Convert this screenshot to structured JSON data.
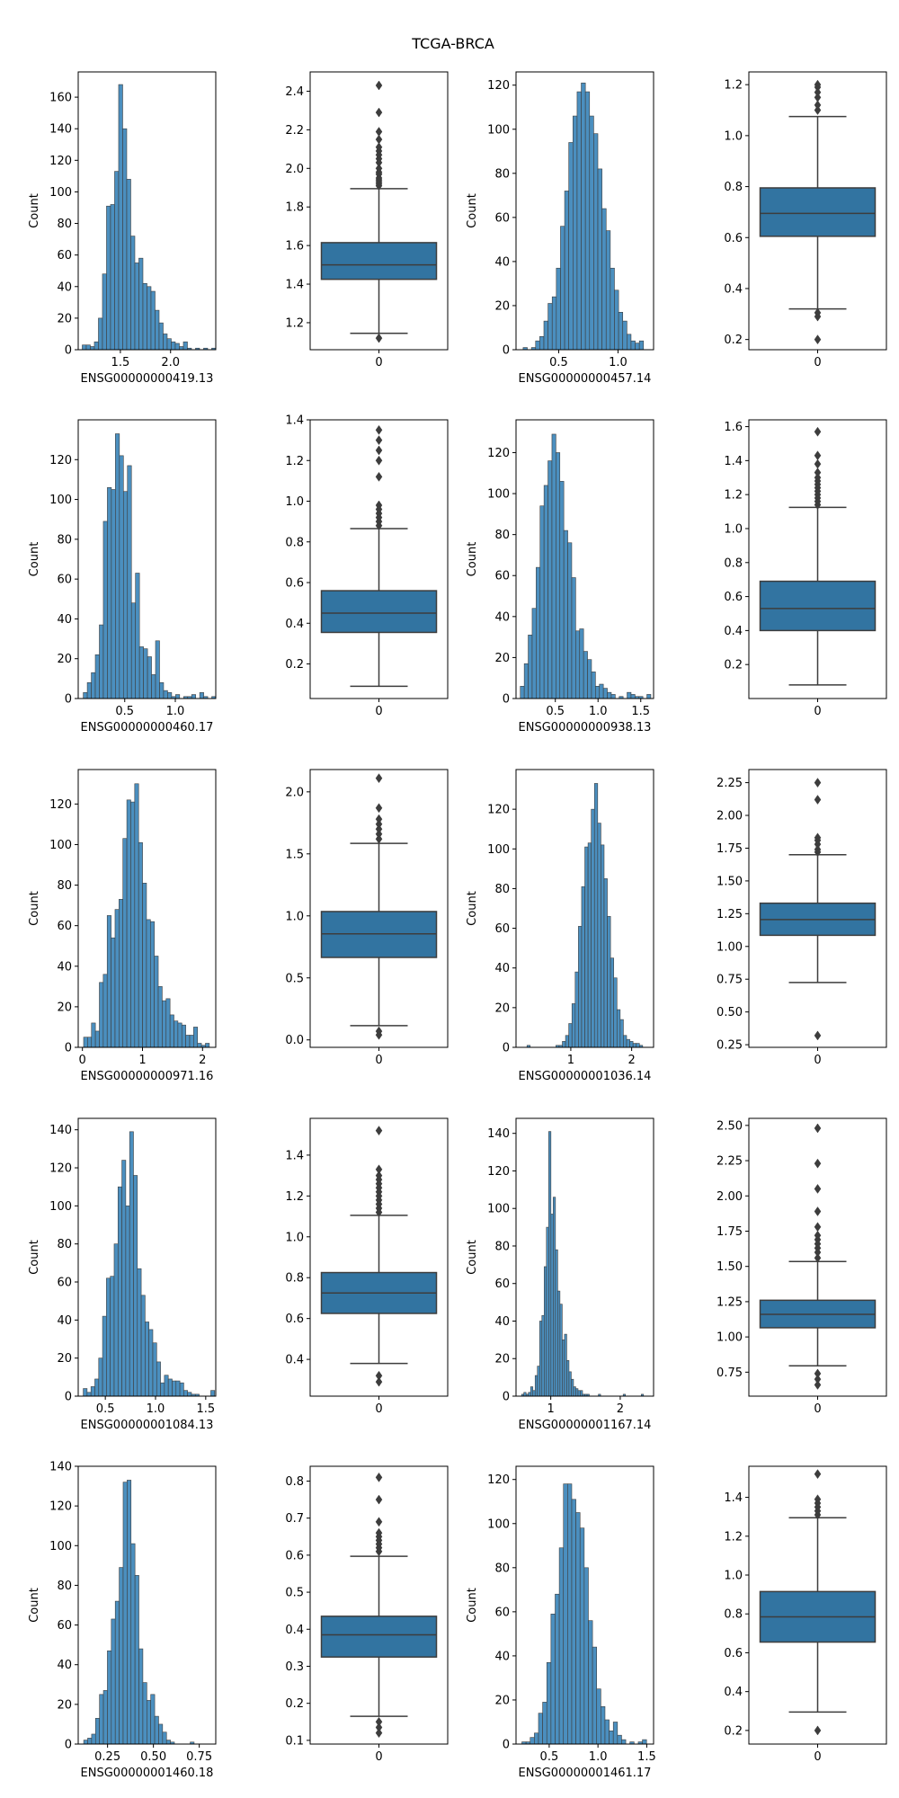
{
  "figure": {
    "title": "TCGA-BRCA"
  },
  "colors": {
    "bar": "#4b8fbf",
    "box": "#3274a1",
    "line": "#3d3d3d",
    "frame": "#000000"
  },
  "chart_data": [
    {
      "type": "bar",
      "kind": "histogram",
      "xlabel": "ENSG00000000419.13",
      "ylabel": "Count",
      "xlim": [
        1.08,
        2.45
      ],
      "ylim": [
        0,
        176
      ],
      "xticks": [
        1.5,
        2.0
      ],
      "xtick_labels": [
        "1.5",
        "2.0"
      ],
      "yticks": [
        0,
        20,
        40,
        60,
        80,
        100,
        120,
        140,
        160
      ],
      "ytick_labels": [
        "0",
        "20",
        "40",
        "60",
        "80",
        "100",
        "120",
        "140",
        "160"
      ],
      "bin_start": 1.12,
      "bin_width": 0.0403,
      "counts": [
        3,
        3,
        2,
        5,
        20,
        48,
        91,
        92,
        113,
        168,
        140,
        108,
        72,
        55,
        58,
        42,
        40,
        37,
        25,
        17,
        10,
        7,
        5,
        4,
        2,
        5,
        1,
        0,
        1,
        0,
        1,
        0,
        1
      ]
    },
    {
      "type": "box",
      "xlabel": "",
      "xtick_labels": [
        "0"
      ],
      "ylim": [
        1.06,
        2.5
      ],
      "yticks": [
        1.2,
        1.4,
        1.6,
        1.8,
        2.0,
        2.2,
        2.4
      ],
      "ytick_labels": [
        "1.2",
        "1.4",
        "1.6",
        "1.8",
        "2.0",
        "2.2",
        "2.4"
      ],
      "q1": 1.425,
      "median": 1.5,
      "q3": 1.615,
      "whisker_low": 1.145,
      "whisker_high": 1.895,
      "outliers": [
        1.12,
        1.91,
        1.92,
        1.93,
        1.94,
        1.95,
        1.97,
        1.98,
        2.0,
        2.03,
        2.05,
        2.07,
        2.09,
        2.11,
        2.15,
        2.19,
        2.29,
        2.43
      ]
    },
    {
      "type": "bar",
      "kind": "histogram",
      "xlabel": "ENSG00000000457.14",
      "ylabel": "Count",
      "xlim": [
        0.14,
        1.3
      ],
      "ylim": [
        0,
        126
      ],
      "xticks": [
        0.5,
        1.0
      ],
      "xtick_labels": [
        "0.5",
        "1.0"
      ],
      "yticks": [
        0,
        20,
        40,
        60,
        80,
        100,
        120
      ],
      "ytick_labels": [
        "0",
        "20",
        "40",
        "60",
        "80",
        "100",
        "120"
      ],
      "bin_start": 0.2,
      "bin_width": 0.035,
      "counts": [
        1,
        0,
        1,
        4,
        6,
        13,
        21,
        24,
        37,
        56,
        72,
        94,
        106,
        117,
        121,
        117,
        106,
        98,
        82,
        64,
        54,
        37,
        27,
        17,
        13,
        7,
        4,
        3,
        4
      ]
    },
    {
      "type": "box",
      "xlabel": "",
      "xtick_labels": [
        "0"
      ],
      "ylim": [
        0.16,
        1.25
      ],
      "yticks": [
        0.2,
        0.4,
        0.6,
        0.8,
        1.0,
        1.2
      ],
      "ytick_labels": [
        "0.2",
        "0.4",
        "0.6",
        "0.8",
        "1.0",
        "1.2"
      ],
      "q1": 0.605,
      "median": 0.695,
      "q3": 0.795,
      "whisker_low": 0.32,
      "whisker_high": 1.075,
      "outliers": [
        0.2,
        0.29,
        0.305,
        1.1,
        1.12,
        1.15,
        1.17,
        1.19,
        1.2
      ]
    },
    {
      "type": "bar",
      "kind": "histogram",
      "xlabel": "ENSG00000000460.17",
      "ylabel": "Count",
      "xlim": [
        0.04,
        1.4
      ],
      "ylim": [
        0,
        140
      ],
      "xticks": [
        0.5,
        1.0
      ],
      "xtick_labels": [
        "0.5",
        "1.0"
      ],
      "yticks": [
        0,
        20,
        40,
        60,
        80,
        100,
        120
      ],
      "ytick_labels": [
        "0",
        "20",
        "40",
        "60",
        "80",
        "100",
        "120"
      ],
      "bin_start": 0.09,
      "bin_width": 0.0397,
      "counts": [
        3,
        8,
        13,
        22,
        37,
        89,
        106,
        105,
        133,
        122,
        104,
        117,
        48,
        63,
        26,
        25,
        21,
        12,
        29,
        8,
        4,
        3,
        1,
        2,
        0,
        1,
        1,
        2,
        0,
        3,
        1,
        0,
        1
      ]
    },
    {
      "type": "box",
      "xlabel": "",
      "xtick_labels": [
        "0"
      ],
      "ylim": [
        0.03,
        1.4
      ],
      "yticks": [
        0.2,
        0.4,
        0.6,
        0.8,
        1.0,
        1.2,
        1.4
      ],
      "ytick_labels": [
        "0.2",
        "0.4",
        "0.6",
        "0.8",
        "1.0",
        "1.2",
        "1.4"
      ],
      "q1": 0.355,
      "median": 0.45,
      "q3": 0.56,
      "whisker_low": 0.09,
      "whisker_high": 0.865,
      "outliers": [
        0.88,
        0.9,
        0.92,
        0.94,
        0.96,
        0.98,
        1.12,
        1.2,
        1.25,
        1.3,
        1.35
      ]
    },
    {
      "type": "bar",
      "kind": "histogram",
      "xlabel": "ENSG00000000938.13",
      "ylabel": "Count",
      "xlim": [
        0.04,
        1.65
      ],
      "ylim": [
        0,
        136
      ],
      "xticks": [
        0.5,
        1.0,
        1.5
      ],
      "xtick_labels": [
        "0.5",
        "1.0",
        "1.5"
      ],
      "yticks": [
        0,
        20,
        40,
        60,
        80,
        100,
        120
      ],
      "ytick_labels": [
        "0",
        "20",
        "40",
        "60",
        "80",
        "100",
        "120"
      ],
      "bin_start": 0.09,
      "bin_width": 0.0463,
      "counts": [
        6,
        17,
        31,
        44,
        64,
        94,
        104,
        116,
        129,
        120,
        106,
        82,
        76,
        59,
        33,
        34,
        23,
        19,
        13,
        6,
        7,
        5,
        3,
        2,
        0,
        1,
        0,
        3,
        2,
        1,
        1,
        0,
        2
      ]
    },
    {
      "type": "box",
      "xlabel": "",
      "xtick_labels": [
        "0"
      ],
      "ylim": [
        0.0,
        1.64
      ],
      "yticks": [
        0.2,
        0.4,
        0.6,
        0.8,
        1.0,
        1.2,
        1.4,
        1.6
      ],
      "ytick_labels": [
        "0.2",
        "0.4",
        "0.6",
        "0.8",
        "1.0",
        "1.2",
        "1.4",
        "1.6"
      ],
      "q1": 0.4,
      "median": 0.53,
      "q3": 0.69,
      "whisker_low": 0.08,
      "whisker_high": 1.125,
      "outliers": [
        1.14,
        1.16,
        1.18,
        1.2,
        1.22,
        1.24,
        1.26,
        1.28,
        1.3,
        1.33,
        1.38,
        1.43,
        1.57
      ]
    },
    {
      "type": "bar",
      "kind": "histogram",
      "xlabel": "ENSG00000000971.16",
      "ylabel": "Count",
      "xlim": [
        -0.07,
        2.22
      ],
      "ylim": [
        0,
        137
      ],
      "xticks": [
        0,
        1,
        2
      ],
      "xtick_labels": [
        "0",
        "1",
        "2"
      ],
      "yticks": [
        0,
        20,
        40,
        60,
        80,
        100,
        120
      ],
      "ytick_labels": [
        "0",
        "20",
        "40",
        "60",
        "80",
        "100",
        "120"
      ],
      "bin_start": 0.02,
      "bin_width": 0.0654,
      "counts": [
        5,
        5,
        12,
        8,
        32,
        36,
        65,
        54,
        68,
        73,
        103,
        122,
        121,
        130,
        101,
        81,
        63,
        62,
        45,
        30,
        23,
        24,
        16,
        13,
        12,
        11,
        6,
        6,
        10,
        2,
        1,
        2
      ]
    },
    {
      "type": "box",
      "xlabel": "",
      "xtick_labels": [
        "0"
      ],
      "ylim": [
        -0.06,
        2.18
      ],
      "yticks": [
        0.0,
        0.5,
        1.0,
        1.5,
        2.0
      ],
      "ytick_labels": [
        "0.0",
        "0.5",
        "1.0",
        "1.5",
        "2.0"
      ],
      "q1": 0.665,
      "median": 0.855,
      "q3": 1.035,
      "whisker_low": 0.115,
      "whisker_high": 1.585,
      "outliers": [
        0.04,
        0.07,
        1.62,
        1.66,
        1.7,
        1.74,
        1.78,
        1.87,
        2.11
      ]
    },
    {
      "type": "bar",
      "kind": "histogram",
      "xlabel": "ENSG00000001036.14",
      "ylabel": "Count",
      "xlim": [
        0.1,
        2.36
      ],
      "ylim": [
        0,
        140
      ],
      "xticks": [
        1,
        2
      ],
      "xtick_labels": [
        "1",
        "2"
      ],
      "yticks": [
        0,
        20,
        40,
        60,
        80,
        100,
        120
      ],
      "ytick_labels": [
        "0",
        "20",
        "40",
        "60",
        "80",
        "100",
        "120"
      ],
      "bin_start": 0.28,
      "bin_width": 0.0528,
      "counts": [
        1,
        0,
        0,
        0,
        0,
        0,
        0,
        0,
        0,
        1,
        1,
        3,
        6,
        12,
        22,
        38,
        61,
        81,
        101,
        103,
        120,
        133,
        113,
        102,
        85,
        66,
        45,
        35,
        19,
        14,
        6,
        4,
        3,
        2,
        2,
        1,
        0,
        0,
        0,
        0
      ]
    },
    {
      "type": "box",
      "xlabel": "",
      "xtick_labels": [
        "0"
      ],
      "ylim": [
        0.23,
        2.35
      ],
      "yticks": [
        0.25,
        0.5,
        0.75,
        1.0,
        1.25,
        1.5,
        1.75,
        2.0,
        2.25
      ],
      "ytick_labels": [
        "0.25",
        "0.50",
        "0.75",
        "1.00",
        "1.25",
        "1.50",
        "1.75",
        "2.00",
        "2.25"
      ],
      "q1": 1.085,
      "median": 1.205,
      "q3": 1.33,
      "whisker_low": 0.725,
      "whisker_high": 1.7,
      "outliers": [
        0.32,
        1.72,
        1.74,
        1.78,
        1.81,
        1.83,
        2.12,
        2.25
      ]
    },
    {
      "type": "bar",
      "kind": "histogram",
      "xlabel": "ENSG00000001084.13",
      "ylabel": "Count",
      "xlim": [
        0.23,
        1.6
      ],
      "ylim": [
        0,
        146
      ],
      "xticks": [
        0.5,
        1.0,
        1.5
      ],
      "xtick_labels": [
        "0.5",
        "1.0",
        "1.5"
      ],
      "yticks": [
        0,
        20,
        40,
        60,
        80,
        100,
        120,
        140
      ],
      "ytick_labels": [
        "0",
        "20",
        "40",
        "60",
        "80",
        "100",
        "120",
        "140"
      ],
      "bin_start": 0.28,
      "bin_width": 0.0385,
      "counts": [
        4,
        2,
        5,
        9,
        20,
        42,
        62,
        63,
        80,
        110,
        124,
        100,
        139,
        116,
        67,
        53,
        39,
        35,
        28,
        18,
        7,
        11,
        9,
        8,
        8,
        7,
        3,
        2,
        1,
        1,
        0,
        0,
        0,
        3
      ]
    },
    {
      "type": "box",
      "xlabel": "",
      "xtick_labels": [
        "0"
      ],
      "ylim": [
        0.22,
        1.58
      ],
      "yticks": [
        0.4,
        0.6,
        0.8,
        1.0,
        1.2,
        1.4
      ],
      "ytick_labels": [
        "0.4",
        "0.6",
        "0.8",
        "1.0",
        "1.2",
        "1.4"
      ],
      "q1": 0.625,
      "median": 0.725,
      "q3": 0.825,
      "whisker_low": 0.38,
      "whisker_high": 1.105,
      "outliers": [
        0.29,
        0.32,
        1.12,
        1.14,
        1.16,
        1.18,
        1.2,
        1.22,
        1.24,
        1.26,
        1.28,
        1.3,
        1.33,
        1.52
      ]
    },
    {
      "type": "bar",
      "kind": "histogram",
      "xlabel": "ENSG00000001167.14",
      "ylabel": "Count",
      "xlim": [
        0.5,
        2.48
      ],
      "ylim": [
        0,
        148
      ],
      "xticks": [
        1,
        2
      ],
      "xtick_labels": [
        "1",
        "2"
      ],
      "yticks": [
        0,
        20,
        40,
        60,
        80,
        100,
        120,
        140
      ],
      "ytick_labels": [
        "0",
        "20",
        "40",
        "60",
        "80",
        "100",
        "120",
        "140"
      ],
      "bin_start": 0.58,
      "bin_width": 0.0325,
      "counts": [
        1,
        2,
        1,
        2,
        5,
        3,
        11,
        16,
        40,
        43,
        69,
        90,
        141,
        97,
        106,
        78,
        56,
        49,
        30,
        33,
        19,
        13,
        9,
        5,
        4,
        3,
        3,
        1,
        1,
        1,
        0,
        0,
        0,
        0,
        1,
        0,
        0,
        0,
        0,
        0,
        0,
        0,
        0,
        0,
        0,
        1,
        0,
        0,
        0,
        0,
        0,
        0,
        0,
        1
      ]
    },
    {
      "type": "box",
      "xlabel": "",
      "xtick_labels": [
        "0"
      ],
      "ylim": [
        0.58,
        2.55
      ],
      "yticks": [
        0.75,
        1.0,
        1.25,
        1.5,
        1.75,
        2.0,
        2.25,
        2.5
      ],
      "ytick_labels": [
        "0.75",
        "1.00",
        "1.25",
        "1.50",
        "1.75",
        "2.00",
        "2.25",
        "2.50"
      ],
      "q1": 1.065,
      "median": 1.16,
      "q3": 1.26,
      "whisker_low": 0.795,
      "whisker_high": 1.535,
      "outliers": [
        0.66,
        0.7,
        0.74,
        1.56,
        1.6,
        1.63,
        1.66,
        1.69,
        1.72,
        1.78,
        1.89,
        2.05,
        2.23,
        2.48
      ]
    },
    {
      "type": "bar",
      "kind": "histogram",
      "xlabel": "ENSG00000001460.18",
      "ylabel": "Count",
      "xlim": [
        0.09,
        0.84
      ],
      "ylim": [
        0,
        140
      ],
      "xticks": [
        0.25,
        0.5,
        0.75
      ],
      "xtick_labels": [
        "0.25",
        "0.50",
        "0.75"
      ],
      "yticks": [
        0,
        20,
        40,
        60,
        80,
        100,
        120,
        140
      ],
      "ytick_labels": [
        "0",
        "20",
        "40",
        "60",
        "80",
        "100",
        "120",
        "140"
      ],
      "bin_start": 0.12,
      "bin_width": 0.0215,
      "counts": [
        2,
        3,
        5,
        13,
        25,
        27,
        47,
        63,
        72,
        89,
        132,
        133,
        101,
        85,
        48,
        31,
        22,
        25,
        14,
        10,
        6,
        2,
        1,
        0,
        0,
        0,
        0,
        1
      ]
    },
    {
      "type": "box",
      "xlabel": "",
      "xtick_labels": [
        "0"
      ],
      "ylim": [
        0.09,
        0.84
      ],
      "yticks": [
        0.1,
        0.2,
        0.3,
        0.4,
        0.5,
        0.6,
        0.7,
        0.8
      ],
      "ytick_labels": [
        "0.1",
        "0.2",
        "0.3",
        "0.4",
        "0.5",
        "0.6",
        "0.7",
        "0.8"
      ],
      "q1": 0.325,
      "median": 0.385,
      "q3": 0.435,
      "whisker_low": 0.165,
      "whisker_high": 0.597,
      "outliers": [
        0.12,
        0.135,
        0.15,
        0.61,
        0.62,
        0.63,
        0.64,
        0.65,
        0.66,
        0.69,
        0.75,
        0.81
      ]
    },
    {
      "type": "bar",
      "kind": "histogram",
      "xlabel": "ENSG00000001461.17",
      "ylabel": "Count",
      "xlim": [
        0.16,
        1.57
      ],
      "ylim": [
        0,
        126
      ],
      "xticks": [
        0.5,
        1.0,
        1.5
      ],
      "xtick_labels": [
        "0.5",
        "1.0",
        "1.5"
      ],
      "yticks": [
        0,
        20,
        40,
        60,
        80,
        100,
        120
      ],
      "ytick_labels": [
        "0",
        "20",
        "40",
        "60",
        "80",
        "100",
        "120"
      ],
      "bin_start": 0.22,
      "bin_width": 0.0426,
      "counts": [
        1,
        1,
        3,
        5,
        14,
        19,
        37,
        59,
        68,
        89,
        118,
        118,
        111,
        105,
        98,
        80,
        56,
        44,
        25,
        17,
        11,
        6,
        10,
        4,
        2,
        0,
        1,
        0,
        1,
        2
      ]
    },
    {
      "type": "box",
      "xlabel": "",
      "xtick_labels": [
        "0"
      ],
      "ylim": [
        0.13,
        1.56
      ],
      "yticks": [
        0.2,
        0.4,
        0.6,
        0.8,
        1.0,
        1.2,
        1.4
      ],
      "ytick_labels": [
        "0.2",
        "0.4",
        "0.6",
        "0.8",
        "1.0",
        "1.2",
        "1.4"
      ],
      "q1": 0.655,
      "median": 0.785,
      "q3": 0.915,
      "whisker_low": 0.295,
      "whisker_high": 1.295,
      "outliers": [
        0.2,
        1.31,
        1.33,
        1.35,
        1.37,
        1.39,
        1.52
      ]
    }
  ]
}
